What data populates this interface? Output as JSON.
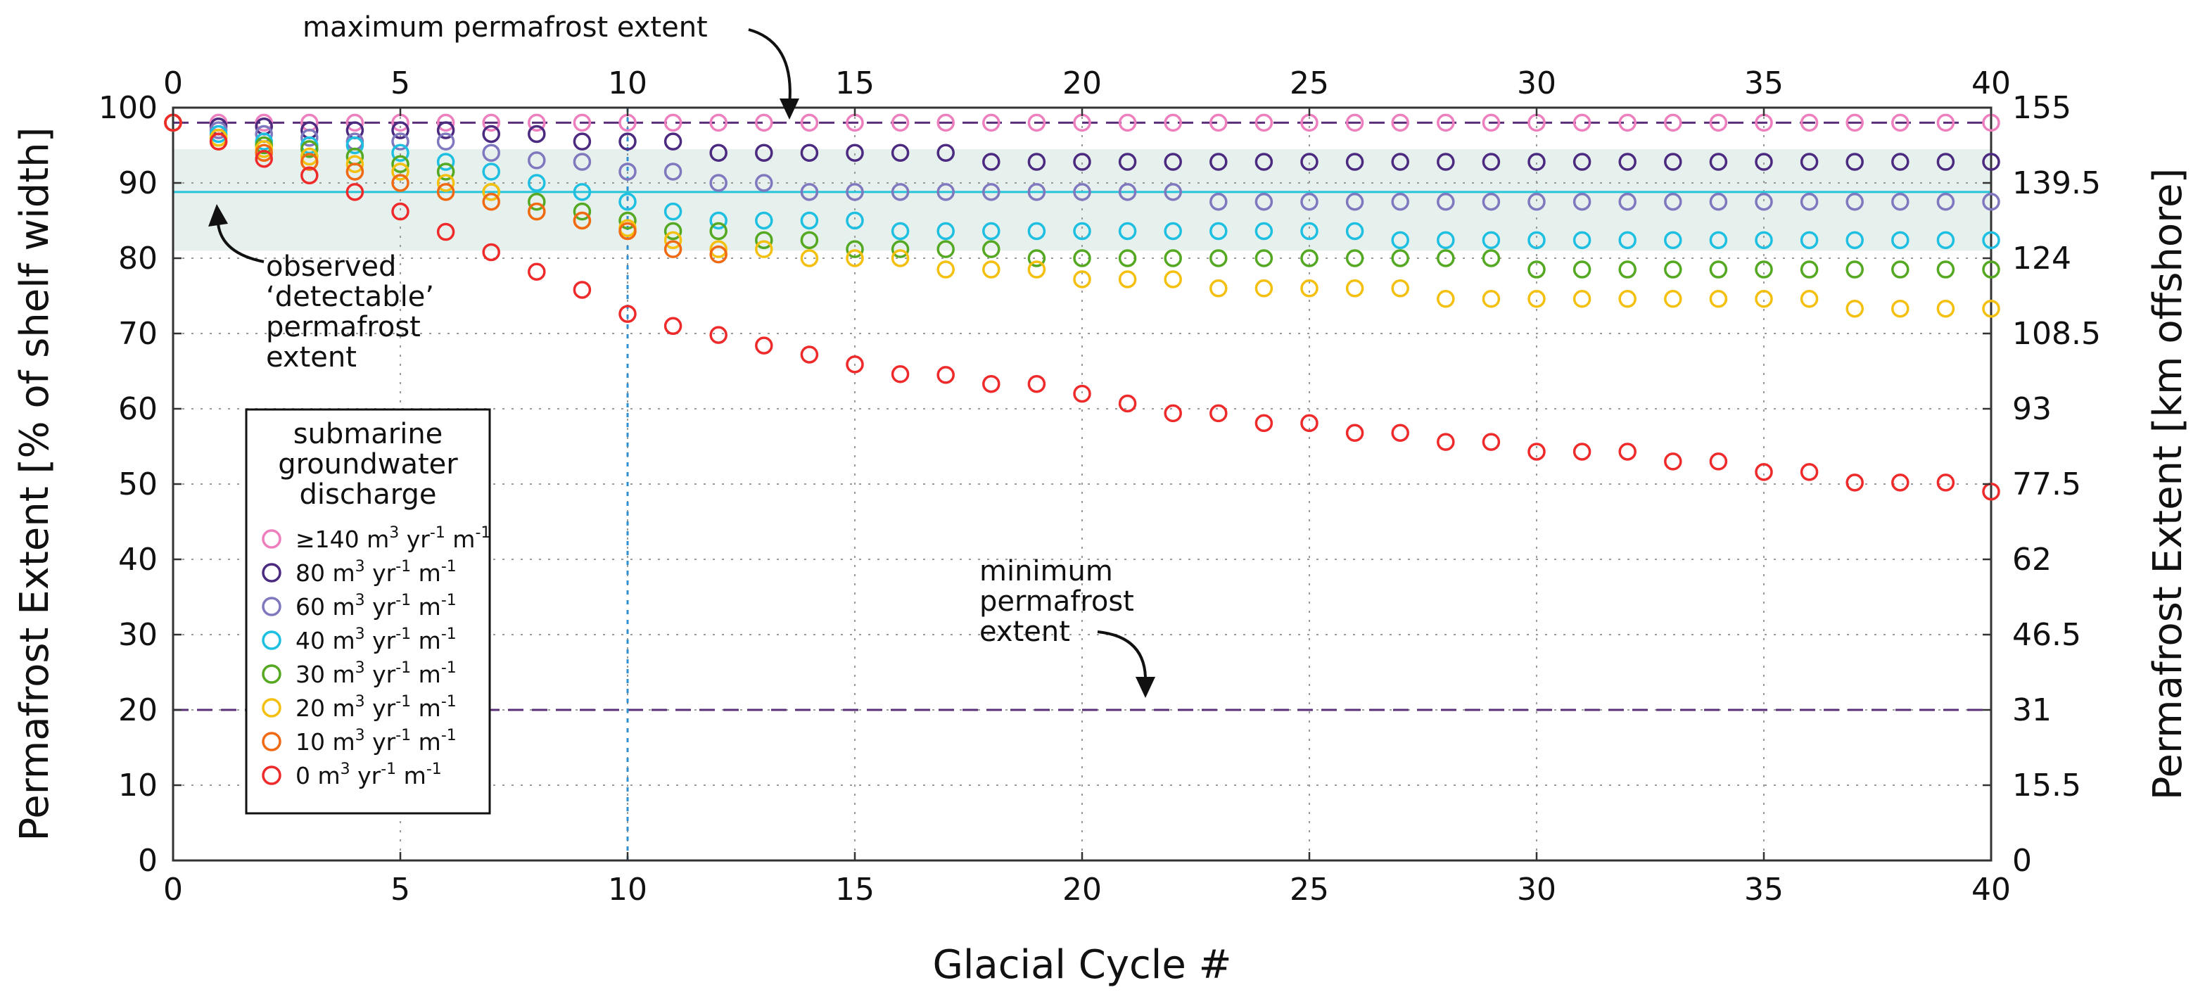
{
  "chart_data": {
    "type": "scatter",
    "xlabel": "Glacial Cycle #",
    "ylabel": "Permafrost Extent [% of shelf width]",
    "ylabel_right": "Permafrost Extent  [km offshore]",
    "xlim": [
      0,
      40
    ],
    "ylim": [
      0,
      100
    ],
    "x_ticks": [
      "0",
      "5",
      "10",
      "15",
      "20",
      "25",
      "30",
      "35",
      "40"
    ],
    "y_ticks": [
      "0",
      "10",
      "20",
      "30",
      "40",
      "50",
      "60",
      "70",
      "80",
      "90",
      "100"
    ],
    "y_ticks_right": [
      "0",
      "15.5",
      "31",
      "46.5",
      "62",
      "77.5",
      "93",
      "108.5",
      "124",
      "139.5",
      "155"
    ],
    "grid": true,
    "legend": {
      "title": [
        "submarine",
        "groundwater",
        "discharge"
      ],
      "position": "lower-left",
      "entries": [
        {
          "pre": "≥140 m",
          "sup1": "3",
          "mid": " yr",
          "sup2": "-1",
          "post": " m",
          "sup3": "-1"
        },
        {
          "pre": "80 m",
          "sup1": "3",
          "mid": " yr",
          "sup2": "-1",
          "post": " m",
          "sup3": "-1"
        },
        {
          "pre": "60 m",
          "sup1": "3",
          "mid": " yr",
          "sup2": "-1",
          "post": " m",
          "sup3": "-1"
        },
        {
          "pre": "40 m",
          "sup1": "3",
          "mid": " yr",
          "sup2": "-1",
          "post": " m",
          "sup3": "-1"
        },
        {
          "pre": "30 m",
          "sup1": "3",
          "mid": " yr",
          "sup2": "-1",
          "post": " m",
          "sup3": "-1"
        },
        {
          "pre": "20 m",
          "sup1": "3",
          "mid": " yr",
          "sup2": "-1",
          "post": " m",
          "sup3": "-1"
        },
        {
          "pre": "10 m",
          "sup1": "3",
          "mid": " yr",
          "sup2": "-1",
          "post": " m",
          "sup3": "-1"
        },
        {
          "pre": "0 m",
          "sup1": "3",
          "mid": " yr",
          "sup2": "-1",
          "post": " m",
          "sup3": "-1"
        }
      ]
    },
    "reference_lines": {
      "maximum_extent": 98,
      "minimum_extent": 20,
      "observed_detectable": 88.8,
      "observed_band": [
        81,
        94.5
      ],
      "cycle_marker_x": 10
    },
    "annotations": {
      "max_label": "maximum permafrost extent",
      "min_label": [
        "minimum",
        "permafrost",
        "extent"
      ],
      "observed_label": [
        "observed",
        "‘detectable’",
        "permafrost",
        "extent"
      ]
    },
    "colors": {
      "s140": "#ee7fbf",
      "s80": "#4b2a80",
      "s60": "#7f78be",
      "s40": "#1ebfe0",
      "s30": "#55a822",
      "s20": "#f4c010",
      "s10": "#f06a14",
      "s0": "#ee2a2a",
      "band": "#e6f1ee",
      "observed_line": "#26c4d8",
      "dashed_ref": "#5a2f78",
      "cycle_line": "#2f8fd0"
    },
    "x": [
      0,
      1,
      2,
      3,
      4,
      5,
      6,
      7,
      8,
      9,
      10,
      11,
      12,
      13,
      14,
      15,
      16,
      17,
      18,
      19,
      20,
      21,
      22,
      23,
      24,
      25,
      26,
      27,
      28,
      29,
      30,
      31,
      32,
      33,
      34,
      35,
      36,
      37,
      38,
      39,
      40
    ],
    "series": [
      {
        "name": "≥140 m3 yr-1 m-1",
        "color_key": "s140",
        "values": [
          98,
          98,
          98,
          98,
          98,
          98,
          98,
          98,
          98,
          98,
          98,
          98,
          98,
          98,
          98,
          98,
          98,
          98,
          98,
          98,
          98,
          98,
          98,
          98,
          98,
          98,
          98,
          98,
          98,
          98,
          98,
          98,
          98,
          98,
          98,
          98,
          98,
          98,
          98,
          98,
          98
        ]
      },
      {
        "name": "80 m3 yr-1 m-1",
        "color_key": "s80",
        "values": [
          98,
          97.5,
          97.5,
          97,
          97,
          97,
          97,
          96.5,
          96.5,
          95.5,
          95.5,
          95.5,
          94,
          94,
          94,
          94,
          94,
          94,
          92.8,
          92.8,
          92.8,
          92.8,
          92.8,
          92.8,
          92.8,
          92.8,
          92.8,
          92.8,
          92.8,
          92.8,
          92.8,
          92.8,
          92.8,
          92.8,
          92.8,
          92.8,
          92.8,
          92.8,
          92.8,
          92.8,
          92.8
        ]
      },
      {
        "name": "60 m3 yr-1 m-1",
        "color_key": "s60",
        "values": [
          98,
          97,
          96.5,
          96,
          95.5,
          95.5,
          95.5,
          94,
          93,
          92.8,
          91.5,
          91.5,
          90,
          90,
          88.8,
          88.8,
          88.8,
          88.8,
          88.8,
          88.8,
          88.8,
          88.8,
          88.8,
          87.5,
          87.5,
          87.5,
          87.5,
          87.5,
          87.5,
          87.5,
          87.5,
          87.5,
          87.5,
          87.5,
          87.5,
          87.5,
          87.5,
          87.5,
          87.5,
          87.5,
          87.5
        ]
      },
      {
        "name": "40 m3 yr-1 m-1",
        "color_key": "s40",
        "values": [
          98,
          96.5,
          95.5,
          95,
          95,
          94,
          92.8,
          91.5,
          90,
          88.8,
          87.5,
          86.2,
          85,
          85,
          85,
          85,
          83.6,
          83.6,
          83.6,
          83.6,
          83.6,
          83.6,
          83.6,
          83.6,
          83.6,
          83.6,
          83.6,
          82.4,
          82.4,
          82.4,
          82.4,
          82.4,
          82.4,
          82.4,
          82.4,
          82.4,
          82.4,
          82.4,
          82.4,
          82.4,
          82.4
        ]
      },
      {
        "name": "30 m3 yr-1 m-1",
        "color_key": "s30",
        "values": [
          98,
          96,
          95,
          94.5,
          93.5,
          92.5,
          91.5,
          88.8,
          87.5,
          86.2,
          85,
          83.6,
          83.6,
          82.4,
          82.4,
          81.2,
          81.2,
          81.2,
          81.2,
          80,
          80,
          80,
          80,
          80,
          80,
          80,
          80,
          80,
          80,
          80,
          78.5,
          78.5,
          78.5,
          78.5,
          78.5,
          78.5,
          78.5,
          78.5,
          78.5,
          78.5,
          78.5
        ]
      },
      {
        "name": "20 m3 yr-1 m-1",
        "color_key": "s20",
        "values": [
          98,
          96,
          94.5,
          93.5,
          92.5,
          91.5,
          90,
          88.8,
          86.2,
          85,
          84,
          82.4,
          81.2,
          81.2,
          80,
          80,
          80,
          78.5,
          78.5,
          78.5,
          77.2,
          77.2,
          77.2,
          76,
          76,
          76,
          76,
          76,
          74.6,
          74.6,
          74.6,
          74.6,
          74.6,
          74.6,
          74.6,
          74.6,
          74.6,
          73.3,
          73.3,
          73.3,
          73.3
        ]
      },
      {
        "name": "10 m3 yr-1 m-1",
        "color_key": "s10",
        "values": [
          98,
          95.5,
          94,
          92.8,
          91.5,
          90,
          88.8,
          87.5,
          86.2,
          85,
          83.6,
          81.2,
          80.5
        ]
      },
      {
        "name": "0 m3 yr-1 m-1",
        "color_key": "s0",
        "values": [
          98,
          95.5,
          93.2,
          91,
          88.8,
          86.2,
          83.5,
          80.8,
          78.2,
          75.8,
          72.6,
          71,
          69.8,
          68.4,
          67.2,
          65.9,
          64.6,
          64.5,
          63.3,
          63.3,
          62,
          60.7,
          59.4,
          59.4,
          58.1,
          58.1,
          56.8,
          56.8,
          55.6,
          55.6,
          54.3,
          54.3,
          54.3,
          53,
          53,
          51.6,
          51.6,
          50.2,
          50.2,
          50.2,
          49
        ]
      }
    ]
  }
}
